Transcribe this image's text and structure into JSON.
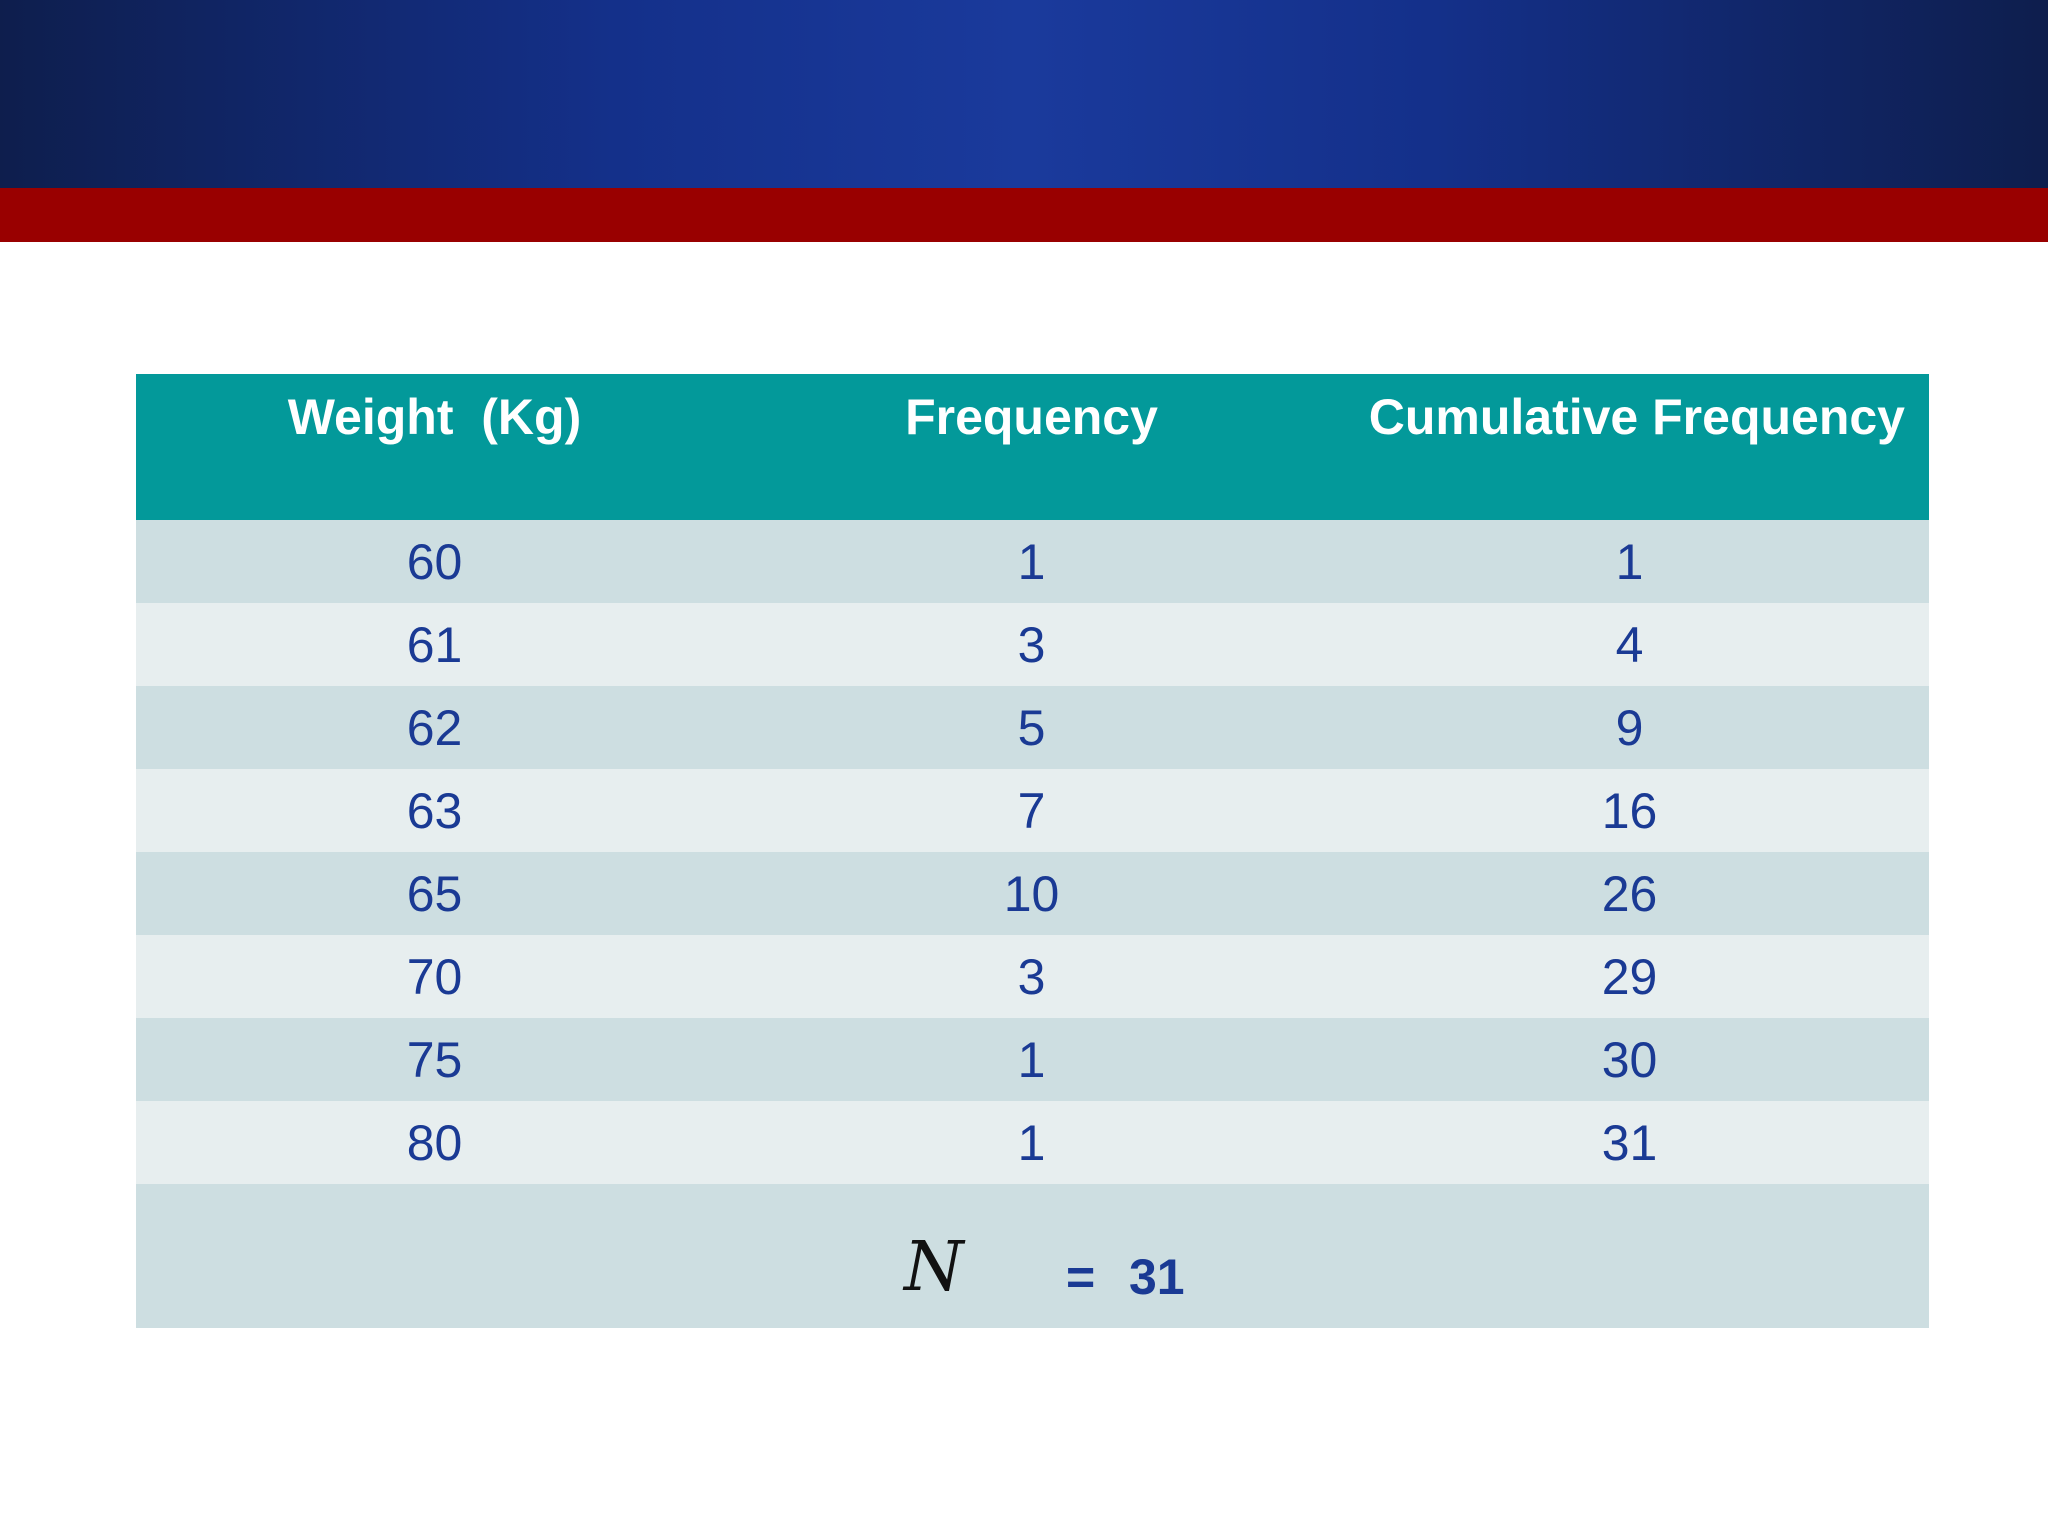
{
  "table": {
    "headers": [
      "Weight  (Kg)",
      "Frequency",
      "Cumulative Frequency"
    ],
    "rows": [
      [
        "60",
        "1",
        "1"
      ],
      [
        "61",
        "3",
        "4"
      ],
      [
        "62",
        "5",
        "9"
      ],
      [
        "63",
        "7",
        "16"
      ],
      [
        "65",
        "10",
        "26"
      ],
      [
        "70",
        "3",
        "29"
      ],
      [
        "75",
        "1",
        "30"
      ],
      [
        "80",
        "1",
        "31"
      ]
    ],
    "total": {
      "symbol": "N",
      "equals": "=",
      "value": "31"
    }
  },
  "colors": {
    "header_bg": "#03999a",
    "header_text": "#ffffff",
    "row_dark": "#cddee1",
    "row_light": "#e7eeef",
    "cell_text": "#1a3a94",
    "banner_blue": "#14308a",
    "banner_red": "#990000"
  }
}
